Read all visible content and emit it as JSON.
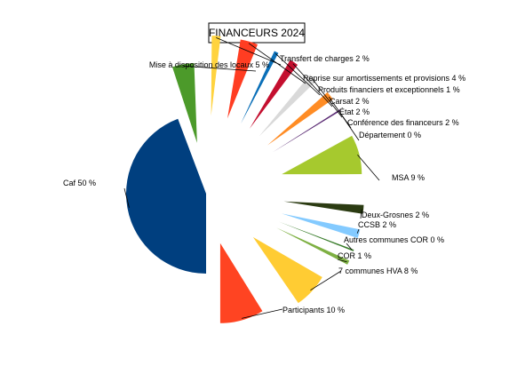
{
  "chart_data": {
    "type": "pie",
    "title": "FINANCEURS 2024",
    "unit": "%",
    "exploded": true,
    "slices": [
      {
        "label": "Caf",
        "value": 50,
        "color": "#003f7f"
      },
      {
        "label": "Mise à disposition des locaux",
        "value": 5,
        "color": "#4c9a2a"
      },
      {
        "label": "Transfert de charges",
        "value": 2,
        "color": "#ffd33f"
      },
      {
        "label": "Reprise sur amortissements et provisions",
        "value": 4,
        "color": "#ff3d22"
      },
      {
        "label": "Produits financiers et exceptionnels",
        "value": 1,
        "color": "#0a6fb8"
      },
      {
        "label": "Carsat",
        "value": 2,
        "color": "#c40f2f"
      },
      {
        "label": "État",
        "value": 2,
        "color": "#d9d9d9"
      },
      {
        "label": "Conférence des financeurs",
        "value": 2,
        "color": "#ff8c24"
      },
      {
        "label": "Département",
        "value": 0,
        "color": "#5a2a73"
      },
      {
        "label": "MSA",
        "value": 9,
        "color": "#a6c92e"
      },
      {
        "label": "Deux-Grosnes",
        "value": 2,
        "color": "#2b3b12"
      },
      {
        "label": "CCSB",
        "value": 2,
        "color": "#83caff"
      },
      {
        "label": "Autres communes COR",
        "value": 0,
        "color": "#3a7d2c"
      },
      {
        "label": "COR",
        "value": 1,
        "color": "#7eb043"
      },
      {
        "label": "7 communes HVA",
        "value": 8,
        "color": "#ffcc33"
      },
      {
        "label": "Participants",
        "value": 10,
        "color": "#ff4422"
      }
    ]
  }
}
